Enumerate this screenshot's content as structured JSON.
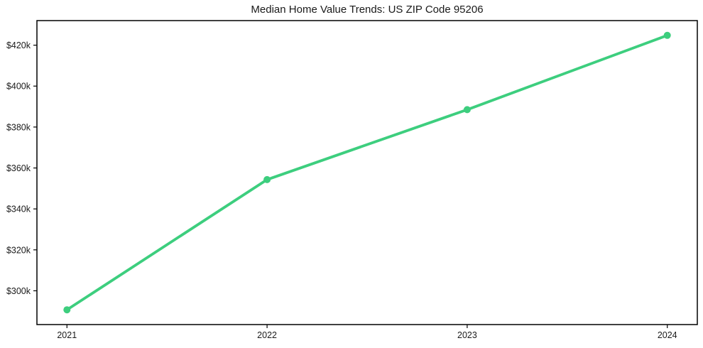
{
  "chart_data": {
    "type": "line",
    "title": "Median Home Value Trends: US ZIP Code 95206",
    "x": [
      2021,
      2022,
      2023,
      2024
    ],
    "x_tick_labels": [
      "2021",
      "2022",
      "2023",
      "2024"
    ],
    "y_ticks": [
      {
        "value": 300000,
        "label": "$300k"
      },
      {
        "value": 320000,
        "label": "$320k"
      },
      {
        "value": 340000,
        "label": "$340k"
      },
      {
        "value": 360000,
        "label": "$360k"
      },
      {
        "value": 380000,
        "label": "$380k"
      },
      {
        "value": 400000,
        "label": "$400k"
      },
      {
        "value": 420000,
        "label": "$420k"
      }
    ],
    "series": [
      {
        "values": [
          290700,
          354300,
          388500,
          424800
        ],
        "color": "#3dce7e",
        "marker": "circle"
      }
    ],
    "xlim": [
      2020.85,
      2024.15
    ],
    "ylim": [
      283500,
      432000
    ],
    "grid": false,
    "legend": "none",
    "frame_color": "#000000",
    "text_color": "#1a1a1a",
    "background": "#ffffff"
  }
}
